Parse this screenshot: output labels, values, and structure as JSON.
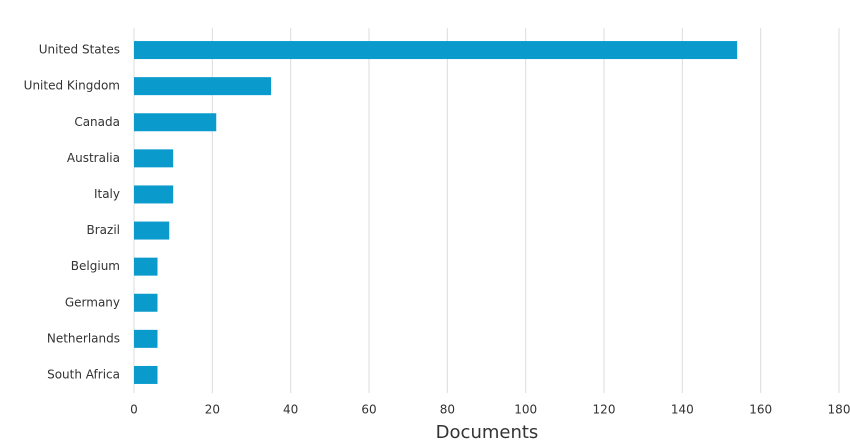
{
  "chart_data": {
    "type": "bar",
    "orientation": "horizontal",
    "x_label": "Documents",
    "categories": [
      "United States",
      "United Kingdom",
      "Canada",
      "Australia",
      "Italy",
      "Brazil",
      "Belgium",
      "Germany",
      "Netherlands",
      "South Africa"
    ],
    "values": [
      154,
      35,
      21,
      10,
      10,
      9,
      6,
      6,
      6,
      6
    ],
    "color": "#0a9bcc",
    "xlim": [
      0,
      180
    ],
    "xticks": [
      0,
      20,
      40,
      60,
      80,
      100,
      120,
      140,
      160,
      180
    ],
    "grid": true
  }
}
